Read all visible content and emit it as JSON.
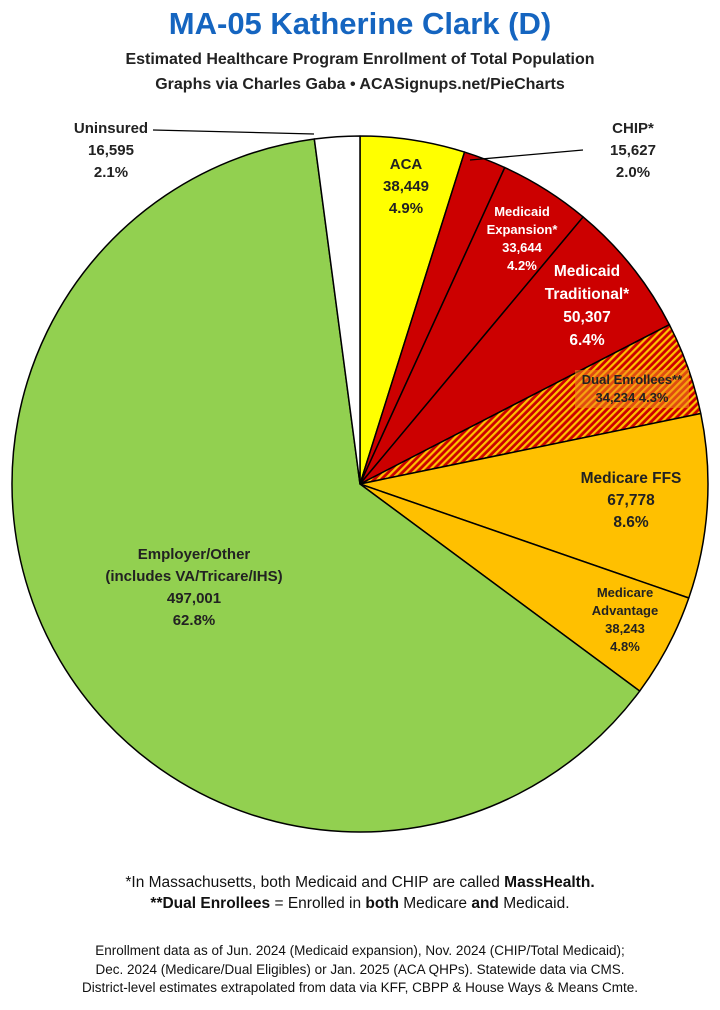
{
  "header": {
    "title": "MA-05 Katherine Clark (D)",
    "subtitle_line1": "Estimated Healthcare Program Enrollment of Total Population",
    "subtitle_line2": "Graphs via Charles Gaba  •  ACASignups.net/PieCharts"
  },
  "chart_data": {
    "type": "pie",
    "title": "MA-05 Katherine Clark (D)",
    "start": "12 o'clock",
    "direction": "clockwise",
    "slices": [
      {
        "label_lines": [
          "ACA"
        ],
        "value": 38449,
        "value_text": "38,449",
        "percent": 4.9,
        "percent_text": "4.9%",
        "color": "#ffff00",
        "text_color": "#222222"
      },
      {
        "label_lines": [
          "CHIP*"
        ],
        "value": 15627,
        "value_text": "15,627",
        "percent": 2.0,
        "percent_text": "2.0%",
        "color": "#cc0000",
        "text_color": "#222222"
      },
      {
        "label_lines": [
          "Medicaid",
          "Expansion*"
        ],
        "value": 33644,
        "value_text": "33,644",
        "percent": 4.2,
        "percent_text": "4.2%",
        "color": "#cc0000",
        "text_color": "#ffffff"
      },
      {
        "label_lines": [
          "Medicaid",
          "Traditional*"
        ],
        "value": 50307,
        "value_text": "50,307",
        "percent": 6.4,
        "percent_text": "6.4%",
        "color": "#cc0000",
        "text_color": "#ffffff"
      },
      {
        "label_lines": [
          "Dual Enrollees**"
        ],
        "value": 34234,
        "value_text": "34,234",
        "percent": 4.3,
        "percent_text": "4.3%",
        "color": "#cc0000",
        "pattern_color": "#ffc000",
        "hatched": true,
        "text_color": "#222222"
      },
      {
        "label_lines": [
          "Medicare FFS"
        ],
        "value": 67778,
        "value_text": "67,778",
        "percent": 8.6,
        "percent_text": "8.6%",
        "color": "#ffc000",
        "text_color": "#222222"
      },
      {
        "label_lines": [
          "Medicare",
          "Advantage"
        ],
        "value": 38243,
        "value_text": "38,243",
        "percent": 4.8,
        "percent_text": "4.8%",
        "color": "#ffc000",
        "text_color": "#222222"
      },
      {
        "label_lines": [
          "Employer/Other",
          "(includes VA/Tricare/IHS)"
        ],
        "value": 497001,
        "value_text": "497,001",
        "percent": 62.8,
        "percent_text": "62.8%",
        "color": "#92d050",
        "text_color": "#222222"
      },
      {
        "label_lines": [
          "Uninsured"
        ],
        "value": 16595,
        "value_text": "16,595",
        "percent": 2.1,
        "percent_text": "2.1%",
        "color": "#ffffff",
        "text_color": "#222222"
      }
    ]
  },
  "footnotes": {
    "line1_pre": "*In Massachusetts, both Medicaid and CHIP are called ",
    "line1_bold": "MassHealth.",
    "line2_bold1": "**Dual Enrollees",
    "line2_mid1": " = Enrolled in ",
    "line2_bold2": "both",
    "line2_mid2": " Medicare ",
    "line2_bold3": "and",
    "line2_end": " Medicaid."
  },
  "sources": {
    "line1": "Enrollment data as of Jun. 2024 (Medicaid expansion), Nov. 2024 (CHIP/Total Medicaid);",
    "line2": "Dec. 2024 (Medicare/Dual Eligibles) or Jan. 2025 (ACA QHPs). Statewide data via CMS.",
    "line3": "District-level estimates extrapolated from data via KFF, CBPP & House Ways & Means Cmte."
  }
}
